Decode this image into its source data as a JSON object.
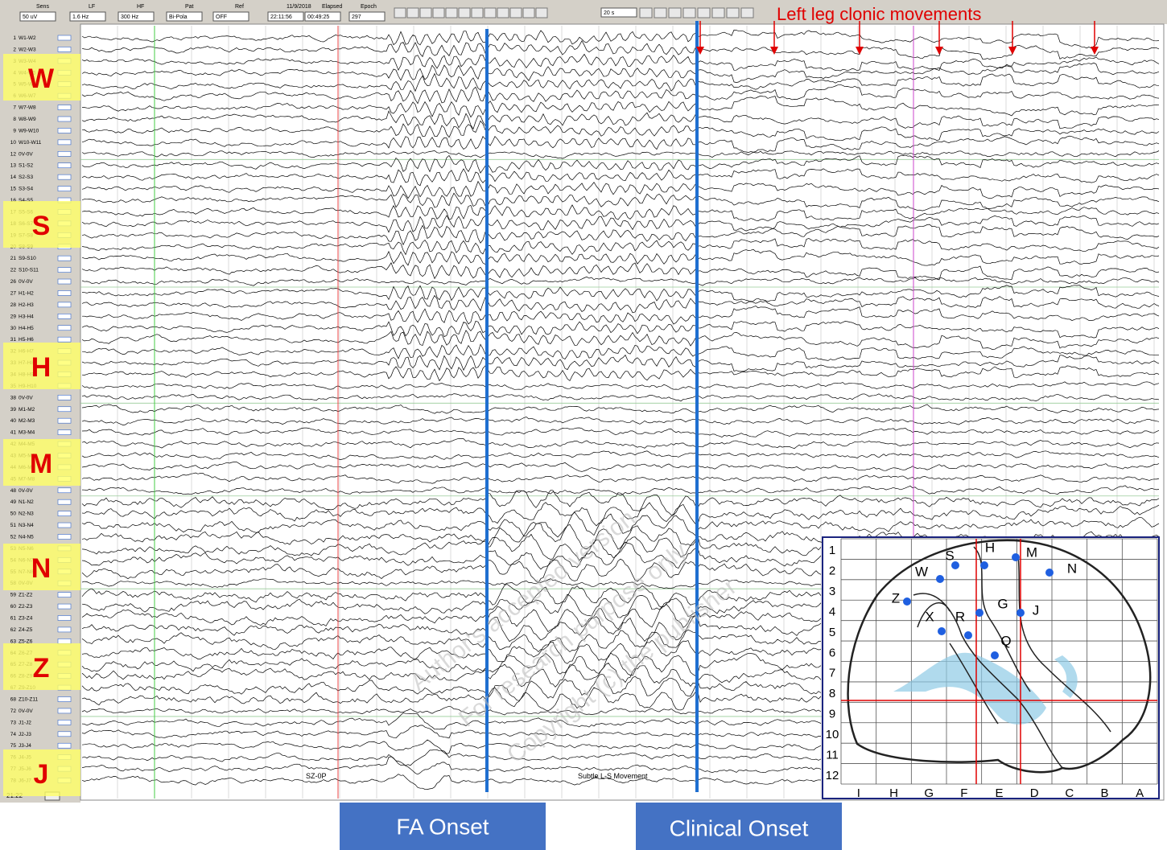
{
  "toolbar": {
    "sens_label": "Sens",
    "sens": "50 uV",
    "lf_label": "LF",
    "lf": "1.6 Hz",
    "hf_label": "HF",
    "hf": "300 Hz",
    "pat_label": "Pat",
    "pat": "Bi-Pola",
    "ref_label": "Ref",
    "ref": "OFF",
    "date": "11/9/2018",
    "time": "22:11:56",
    "elapsed_label": "Elapsed",
    "elapsed": "00:49:25",
    "epoch_label": "Epoch",
    "epoch": "297",
    "page": "20 s"
  },
  "channels": [
    {
      "num": "1",
      "label": "W1-W2"
    },
    {
      "num": "2",
      "label": "W2-W3"
    },
    {
      "num": "3",
      "label": "W3-W4"
    },
    {
      "num": "4",
      "label": "W4-W5"
    },
    {
      "num": "5",
      "label": "W5-W6"
    },
    {
      "num": "6",
      "label": "W6-W7"
    },
    {
      "num": "7",
      "label": "W7-W8"
    },
    {
      "num": "8",
      "label": "W8-W9"
    },
    {
      "num": "9",
      "label": "W9-W10"
    },
    {
      "num": "10",
      "label": "W10-W11"
    },
    {
      "num": "12",
      "label": "0V-0V"
    },
    {
      "num": "13",
      "label": "S1-S2"
    },
    {
      "num": "14",
      "label": "S2-S3"
    },
    {
      "num": "15",
      "label": "S3-S4"
    },
    {
      "num": "16",
      "label": "S4-S5"
    },
    {
      "num": "17",
      "label": "S5-S6"
    },
    {
      "num": "18",
      "label": "S6-S7"
    },
    {
      "num": "19",
      "label": "S7-S8"
    },
    {
      "num": "20",
      "label": "S8-S9"
    },
    {
      "num": "21",
      "label": "S9-S10"
    },
    {
      "num": "22",
      "label": "S10-S11"
    },
    {
      "num": "26",
      "label": "0V-0V"
    },
    {
      "num": "27",
      "label": "H1-H2"
    },
    {
      "num": "28",
      "label": "H2-H3"
    },
    {
      "num": "29",
      "label": "H3-H4"
    },
    {
      "num": "30",
      "label": "H4-H5"
    },
    {
      "num": "31",
      "label": "H5-H6"
    },
    {
      "num": "32",
      "label": "H6-H7"
    },
    {
      "num": "33",
      "label": "H7-H8"
    },
    {
      "num": "34",
      "label": "H8-H9"
    },
    {
      "num": "35",
      "label": "H9-H10"
    },
    {
      "num": "38",
      "label": "0V-0V"
    },
    {
      "num": "39",
      "label": "M1-M2"
    },
    {
      "num": "40",
      "label": "M2-M3"
    },
    {
      "num": "41",
      "label": "M3-M4"
    },
    {
      "num": "42",
      "label": "M4-M5"
    },
    {
      "num": "43",
      "label": "M5-M6"
    },
    {
      "num": "44",
      "label": "M6-M7"
    },
    {
      "num": "45",
      "label": "M7-M8"
    },
    {
      "num": "48",
      "label": "0V-0V"
    },
    {
      "num": "49",
      "label": "N1-N2"
    },
    {
      "num": "50",
      "label": "N2-N3"
    },
    {
      "num": "51",
      "label": "N3-N4"
    },
    {
      "num": "52",
      "label": "N4-N5"
    },
    {
      "num": "53",
      "label": "N5-N6"
    },
    {
      "num": "54",
      "label": "N6-N7"
    },
    {
      "num": "55",
      "label": "N7-N8"
    },
    {
      "num": "58",
      "label": "0V-0V"
    },
    {
      "num": "59",
      "label": "Z1-Z2"
    },
    {
      "num": "60",
      "label": "Z2-Z3"
    },
    {
      "num": "61",
      "label": "Z3-Z4"
    },
    {
      "num": "62",
      "label": "Z4-Z5"
    },
    {
      "num": "63",
      "label": "Z5-Z6"
    },
    {
      "num": "64",
      "label": "Z6-Z7"
    },
    {
      "num": "65",
      "label": "Z7-Z8"
    },
    {
      "num": "66",
      "label": "Z8-Z9"
    },
    {
      "num": "67",
      "label": "Z9-Z10"
    },
    {
      "num": "68",
      "label": "Z10-Z11"
    },
    {
      "num": "72",
      "label": "0V-0V"
    },
    {
      "num": "73",
      "label": "J1-J2"
    },
    {
      "num": "74",
      "label": "J2-J3"
    },
    {
      "num": "75",
      "label": "J3-J4"
    },
    {
      "num": "76",
      "label": "J4-J5"
    },
    {
      "num": "77",
      "label": "J5-J6"
    },
    {
      "num": "78",
      "label": "J6-J7"
    }
  ],
  "groups": [
    "W",
    "S",
    "H",
    "M",
    "N",
    "Z",
    "J"
  ],
  "annotation": "Left leg clonic movements",
  "event_markers": [
    "SZ-0P",
    "Subtle L-S Movement"
  ],
  "onset_labels": [
    "FA Onset",
    "Clinical Onset"
  ],
  "time_label": "21:22",
  "watermark": [
    "Author's accepted version",
    "For research purpose only",
    "Copyright (c) the publisher"
  ],
  "inset": {
    "rows": [
      "1",
      "2",
      "3",
      "4",
      "5",
      "6",
      "7",
      "8",
      "9",
      "10",
      "11",
      "12"
    ],
    "columns": [
      "I",
      "H",
      "G",
      "F",
      "E",
      "D",
      "C",
      "B",
      "A"
    ],
    "electrodes": [
      "S",
      "H",
      "M",
      "W",
      "N",
      "Z",
      "G",
      "J",
      "X",
      "R",
      "Q"
    ]
  }
}
